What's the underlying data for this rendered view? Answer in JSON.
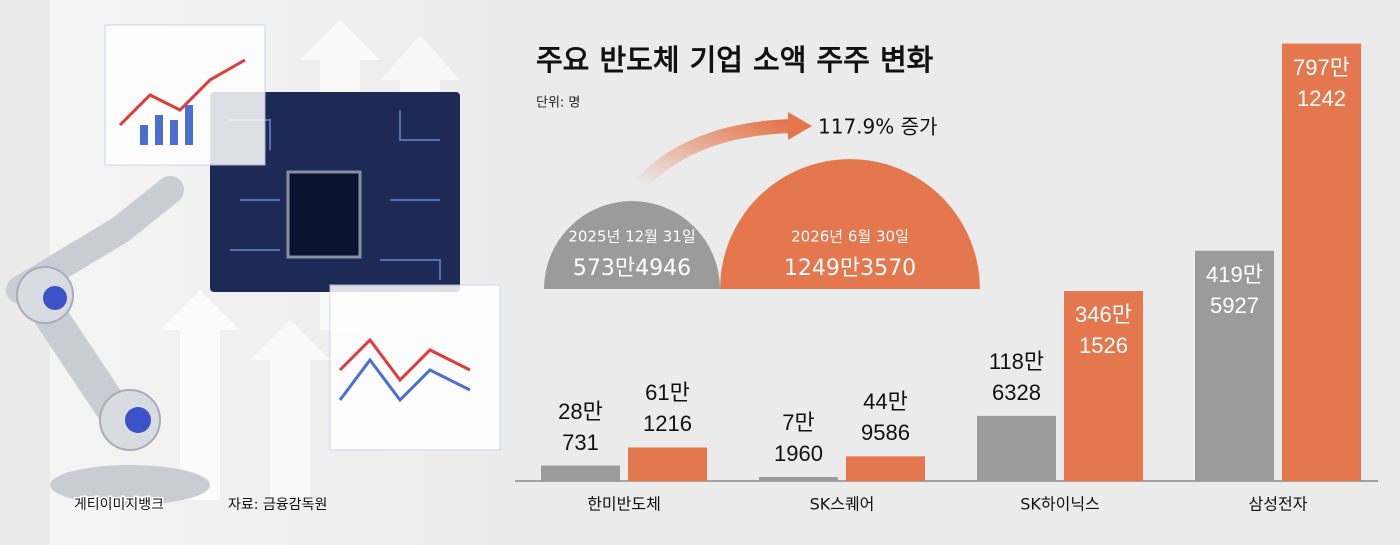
{
  "chart_data": {
    "type": "bar",
    "title": "주요 반도체 기업 소액 주주 변화",
    "subtitle": "단위: 명",
    "categories": [
      "한미반도체",
      "SK스퀘어",
      "SK하이닉스",
      "삼성전자"
    ],
    "series": [
      {
        "name": "2025년 12월 31일",
        "color": "#9b9b9b",
        "values": [
          280731,
          71960,
          1186328,
          4195927
        ],
        "value_labels": [
          "28만\n731",
          "7만\n1960",
          "118만\n6328",
          "419만\n5927"
        ]
      },
      {
        "name": "2026년 6월 30일",
        "color": "#e4774e",
        "values": [
          611216,
          449586,
          3461526,
          7971242
        ],
        "value_labels": [
          "61만\n1216",
          "44만\n9586",
          "346만\n1526",
          "797만\n1242"
        ]
      }
    ],
    "totals": {
      "values": [
        5734946,
        12493570
      ],
      "value_labels": [
        "573만4946",
        "1249만3570"
      ]
    },
    "annotation": "117.9% 증가",
    "ylim": [
      0,
      8000000
    ],
    "image_credit": "게티이미지뱅크",
    "source": "자료: 금융감독원"
  }
}
